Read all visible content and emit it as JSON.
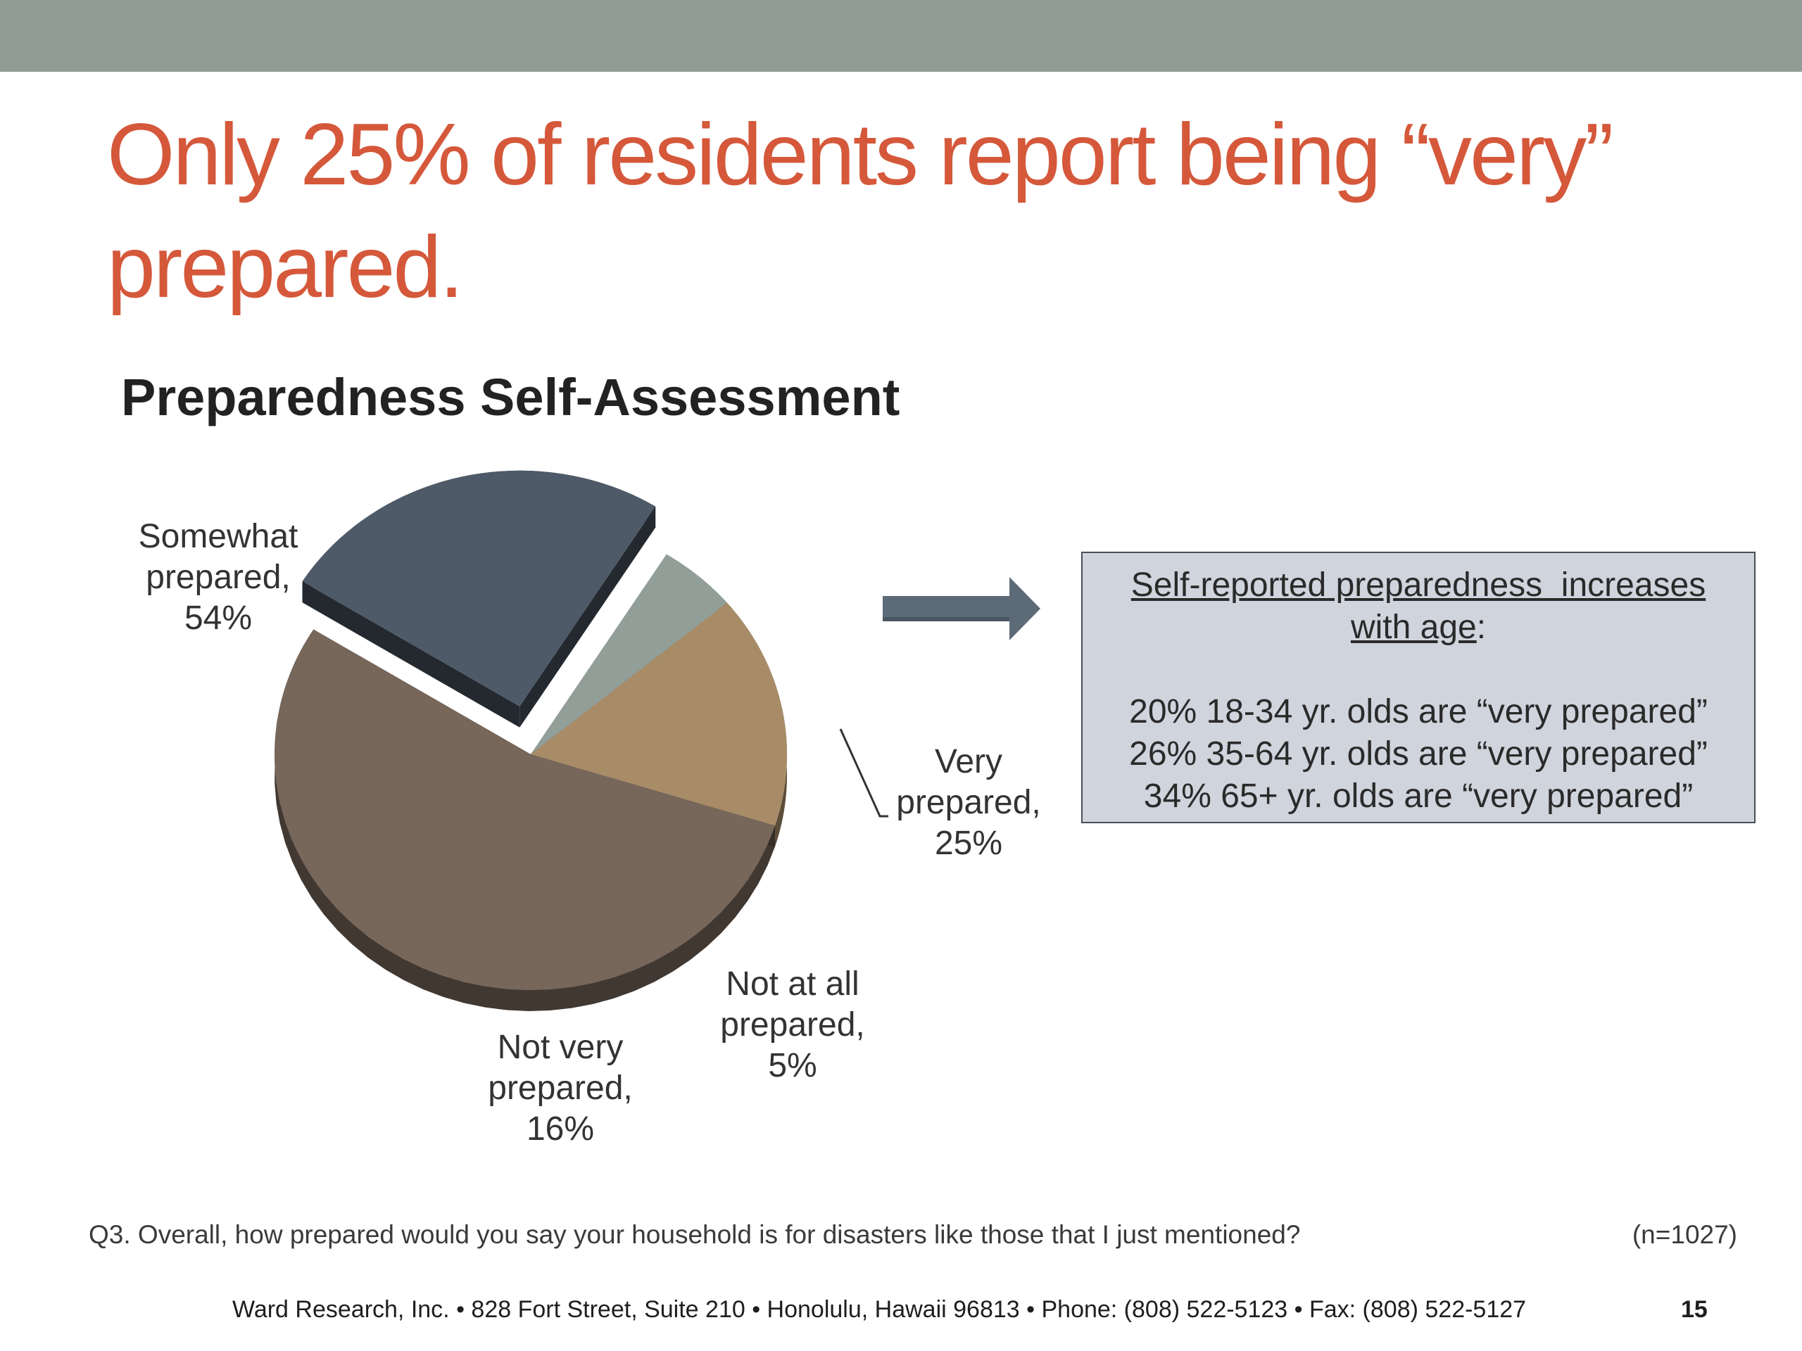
{
  "slide": {
    "title": "Only 25% of residents report being “very” prepared.",
    "question": "Q3. Overall, how prepared would you say your household is for disasters like those that I just mentioned?",
    "sample_size": "(n=1027)",
    "footer": "Ward Research, Inc. • 828 Fort Street, Suite 210 • Honolulu, Hawaii 96813 • Phone: (808) 522-5123 • Fax: (808) 522-5127",
    "page_number": "15"
  },
  "callout": {
    "heading_line1": "Self-reported preparedness  increases",
    "heading_line2_underlined": "with age",
    "heading_line2_suffix": ":",
    "lines": [
      "20% 18-34 yr. olds are “very prepared”",
      "26% 35-64 yr. olds are “very prepared”",
      "34% 65+ yr. olds are “very prepared”"
    ]
  },
  "chart_data": {
    "type": "pie",
    "title": "Preparedness Self-Assessment",
    "slices": [
      {
        "label_line1": "Very",
        "label_line2": "prepared,",
        "value_text": "25%",
        "value": 25,
        "color": "#4e5a68",
        "exploded": true
      },
      {
        "label_line1": "Not at all",
        "label_line2": "prepared,",
        "value_text": "5%",
        "value": 5,
        "color": "#929e98",
        "exploded": false
      },
      {
        "label_line1": "Not very",
        "label_line2": "prepared,",
        "value_text": "16%",
        "value": 16,
        "color": "#a88c68",
        "exploded": false
      },
      {
        "label_line1": "Somewhat",
        "label_line2": "prepared,",
        "value_text": "54%",
        "value": 54,
        "color": "#77665a",
        "exploded": false
      }
    ],
    "legend": "none",
    "style": "3d",
    "colors": {
      "arrow": "#5d6a78",
      "title_accent": "#d5583b"
    }
  }
}
